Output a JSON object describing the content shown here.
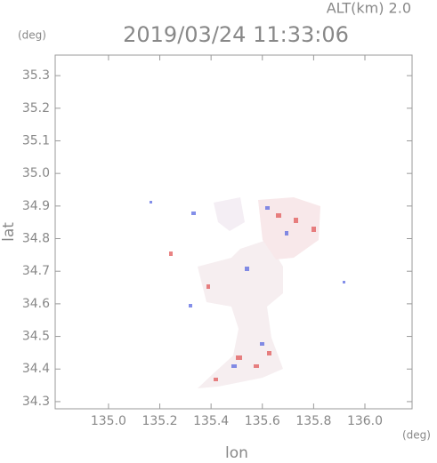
{
  "chart_data": {
    "type": "map",
    "title": "2019/03/24 11:33:06",
    "annotation": "ALT(km) 2.0",
    "y_unit": "(deg)",
    "x_unit": "(deg)",
    "xlabel": "lon",
    "ylabel": "lat",
    "xlim": [
      134.792,
      136.184
    ],
    "ylim": [
      34.278,
      35.363
    ],
    "xticks": [
      {
        "value": 135.0,
        "label": "135.0"
      },
      135.2,
      135.4,
      135.6,
      135.8,
      {
        "value": 136.0,
        "label": "136.0"
      }
    ],
    "yticks": [
      34.3,
      34.4,
      34.5,
      34.6,
      34.7,
      34.8,
      34.9,
      {
        "value": 35.0,
        "label": "35.0"
      },
      35.1,
      35.2,
      35.3
    ],
    "grid": false
  }
}
